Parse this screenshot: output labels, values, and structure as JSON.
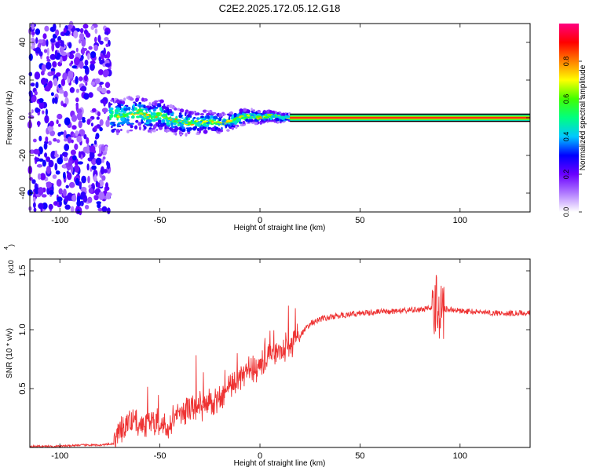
{
  "title": "C2E2.2025.172.05.12.G18",
  "chart_data": [
    {
      "type": "heatmap",
      "xlabel": "Height of straight line (km)",
      "ylabel": "Frequency (Hz)",
      "xlim": [
        -115,
        135
      ],
      "ylim": [
        -50,
        50
      ],
      "xticks": [
        -100,
        -50,
        0,
        50,
        100
      ],
      "yticks": [
        -40,
        -20,
        0,
        20,
        40
      ],
      "colorbar": {
        "label": "Normalized spectral amplitude",
        "range": [
          0,
          1
        ],
        "ticks": [
          "0.0",
          "0.2",
          "0.4",
          "0.6",
          "0.8"
        ],
        "colors": [
          "#ffffff",
          "#b07aff",
          "#6a00ff",
          "#0000ff",
          "#00c8ff",
          "#00ff80",
          "#40ff00",
          "#ffff00",
          "#ff8000",
          "#ff0000",
          "#ff0080"
        ]
      },
      "regions": [
        {
          "name": "noise",
          "x": [
            -115,
            -75
          ],
          "freq_spread": 50
        },
        {
          "name": "transition",
          "x": [
            -75,
            15
          ],
          "freq_center": 0
        },
        {
          "name": "carrier",
          "x": [
            15,
            135
          ],
          "freq_center": 0,
          "amplitude": 1.0
        }
      ],
      "carrier_freq": [
        [
          -78,
          0
        ],
        [
          -70,
          1
        ],
        [
          -60,
          3
        ],
        [
          -55,
          0
        ],
        [
          -50,
          2
        ],
        [
          -45,
          -1
        ],
        [
          -35,
          -3
        ],
        [
          -25,
          -2
        ],
        [
          -20,
          -3
        ],
        [
          -15,
          -2
        ],
        [
          -10,
          0
        ],
        [
          -5,
          1
        ],
        [
          0,
          0
        ],
        [
          5,
          1
        ],
        [
          10,
          0
        ],
        [
          15,
          0
        ],
        [
          50,
          0
        ],
        [
          85,
          1
        ],
        [
          135,
          0
        ]
      ]
    },
    {
      "type": "line",
      "xlabel": "Height of straight line (km)",
      "ylabel": "SNR (10 * v/v)",
      "yscale_label": "(x10",
      "yscale_exp": "4",
      "xlim": [
        -115,
        135
      ],
      "ylim": [
        0,
        1.6
      ],
      "xticks": [
        -100,
        -50,
        0,
        50,
        100
      ],
      "yticks": [
        0.5,
        1.0,
        1.5
      ],
      "line_color": "#ee3333",
      "series": [
        {
          "x": [
            -115,
            -100,
            -90,
            -80,
            -73,
            -70,
            -65,
            -60,
            -55,
            -50,
            -45,
            -40,
            -35,
            -30,
            -25,
            -20,
            -15,
            -10,
            -5,
            0,
            5,
            10,
            15,
            20,
            25,
            30,
            40,
            50,
            60,
            70,
            80,
            85,
            88,
            90,
            92,
            100,
            110,
            120,
            135
          ],
          "values": [
            0.01,
            0.01,
            0.02,
            0.02,
            0.03,
            0.15,
            0.22,
            0.18,
            0.2,
            0.2,
            0.18,
            0.28,
            0.32,
            0.36,
            0.38,
            0.4,
            0.52,
            0.58,
            0.62,
            0.7,
            0.78,
            0.8,
            0.88,
            0.95,
            1.05,
            1.09,
            1.12,
            1.14,
            1.15,
            1.16,
            1.17,
            1.18,
            1.2,
            1.12,
            1.18,
            1.16,
            1.15,
            1.14,
            1.14
          ]
        }
      ]
    }
  ]
}
